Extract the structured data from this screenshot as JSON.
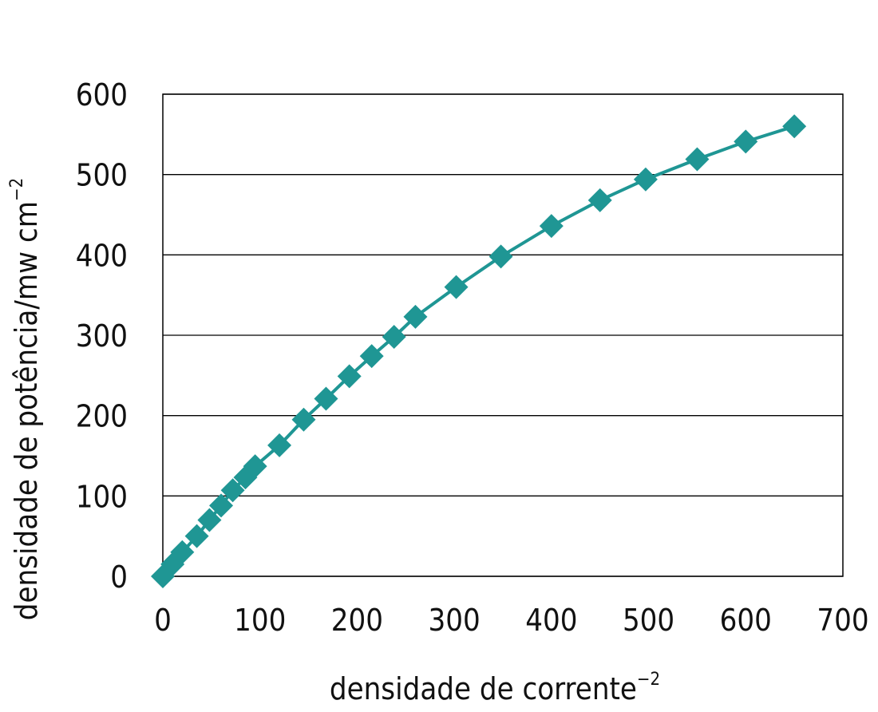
{
  "chart_data": {
    "type": "line",
    "title": "",
    "xlabel": "densidade de corrente",
    "xlabel_superscript": "−2",
    "ylabel": "densidade de potência/mw cm",
    "ylabel_superscript": "−2",
    "xlim": [
      0,
      700
    ],
    "ylim": [
      0,
      600
    ],
    "x_ticks": [
      0,
      100,
      200,
      300,
      400,
      500,
      600,
      700
    ],
    "y_ticks": [
      0,
      100,
      200,
      300,
      400,
      500,
      600
    ],
    "grid": "horizontal",
    "legend": "none",
    "colors": {
      "series": "#1f9694",
      "grid": "#000000",
      "axis": "#000000"
    },
    "series": [
      {
        "marker": "diamond",
        "x": [
          0,
          10,
          20,
          35,
          48,
          60,
          72,
          85,
          95,
          120,
          145,
          168,
          192,
          215,
          238,
          260,
          302,
          348,
          400,
          450,
          497,
          550,
          600,
          650
        ],
        "y": [
          0,
          15,
          30,
          50,
          70,
          88,
          107,
          123,
          137,
          163,
          195,
          221,
          249,
          274,
          298,
          323,
          360,
          398,
          436,
          468,
          494,
          519,
          541,
          560
        ]
      }
    ]
  }
}
